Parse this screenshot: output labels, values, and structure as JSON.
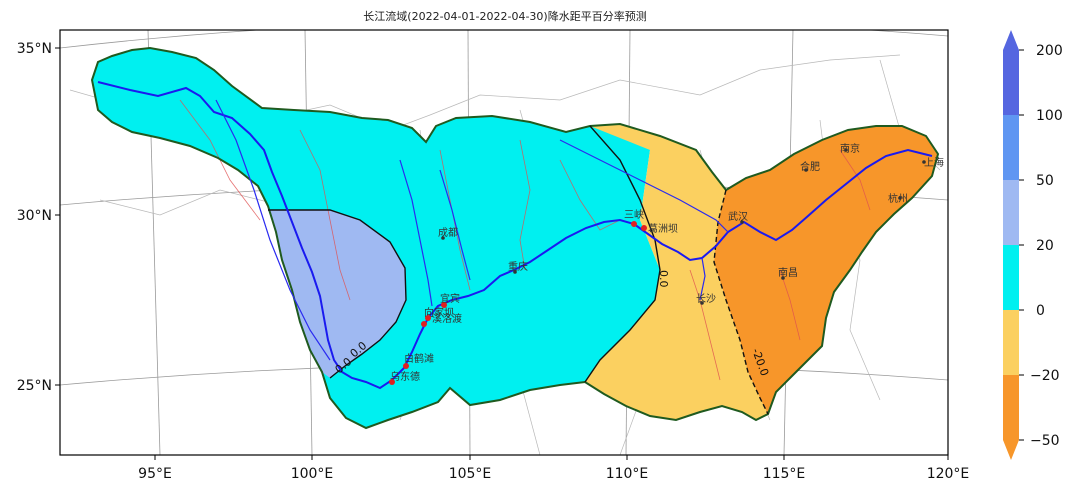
{
  "title": "长江流域(2022-04-01-2022-04-30)降水距平百分率预测",
  "axes": {
    "x_ticks": [
      "95°E",
      "100°E",
      "105°E",
      "110°E",
      "115°E",
      "120°E"
    ],
    "y_ticks": [
      "35°N",
      "30°N",
      "25°N"
    ]
  },
  "colorbar": {
    "ticks": [
      "200",
      "100",
      "50",
      "20",
      "0",
      "−20",
      "−50"
    ],
    "levels": [
      {
        "range": "100~200",
        "color": "#5566e0"
      },
      {
        "range": "50~100",
        "color": "#5f96f2"
      },
      {
        "range": "20~50",
        "color": "#9fb9f2"
      },
      {
        "range": "0~20",
        "color": "#00f0f0"
      },
      {
        "range": "-20~0",
        "color": "#fbd060"
      },
      {
        "range": "-50~-20",
        "color": "#f7962a"
      }
    ]
  },
  "contour_labels": [
    "0.0",
    "0.0",
    "-20.0"
  ],
  "cities": [
    {
      "name": "成都"
    },
    {
      "name": "重庆"
    },
    {
      "name": "长沙"
    },
    {
      "name": "南昌"
    },
    {
      "name": "武汉"
    },
    {
      "name": "合肥"
    },
    {
      "name": "南京"
    },
    {
      "name": "杭州"
    },
    {
      "name": "上海"
    }
  ],
  "stations": [
    {
      "name": "宜宾"
    },
    {
      "name": "向家坝"
    },
    {
      "name": "溪洛渡"
    },
    {
      "name": "白鹤滩"
    },
    {
      "name": "乌东德"
    },
    {
      "name": "三峡"
    },
    {
      "name": "葛洲坝"
    }
  ]
}
